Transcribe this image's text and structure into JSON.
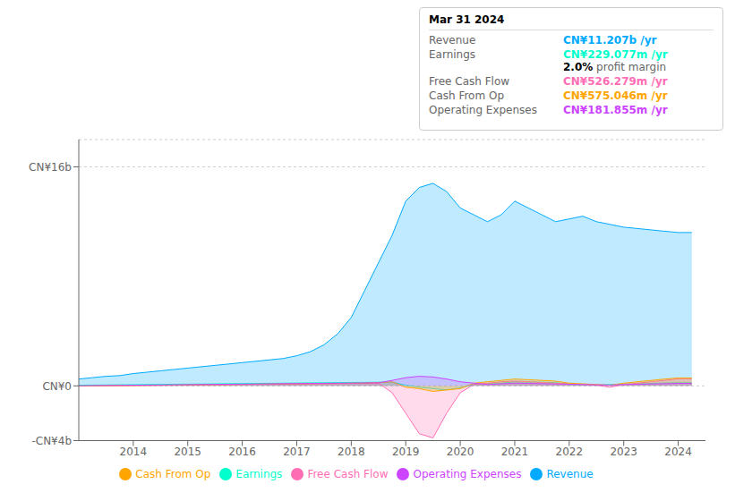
{
  "chart_data": {
    "type": "area",
    "x": [
      2013.0,
      2013.25,
      2013.5,
      2013.75,
      2014.0,
      2014.25,
      2014.5,
      2014.75,
      2015.0,
      2015.25,
      2015.5,
      2015.75,
      2016.0,
      2016.25,
      2016.5,
      2016.75,
      2017.0,
      2017.25,
      2017.5,
      2017.75,
      2018.0,
      2018.25,
      2018.5,
      2018.75,
      2019.0,
      2019.25,
      2019.5,
      2019.75,
      2020.0,
      2020.25,
      2020.5,
      2020.75,
      2021.0,
      2021.25,
      2021.5,
      2021.75,
      2022.0,
      2022.25,
      2022.5,
      2022.75,
      2023.0,
      2023.25,
      2023.5,
      2023.75,
      2024.0,
      2024.25
    ],
    "series": [
      {
        "name": "Revenue",
        "color": "#00aaff",
        "values": [
          500000000,
          600000000,
          700000000,
          750000000,
          900000000,
          1000000000,
          1100000000,
          1200000000,
          1300000000,
          1400000000,
          1500000000,
          1600000000,
          1700000000,
          1800000000,
          1900000000,
          2000000000,
          2200000000,
          2500000000,
          3000000000,
          3800000000,
          5000000000,
          7000000000,
          9000000000,
          11000000000,
          13500000000,
          14500000000,
          14800000000,
          14200000000,
          13000000000,
          12500000000,
          12000000000,
          12500000000,
          13500000000,
          13000000000,
          12500000000,
          12000000000,
          12200000000,
          12400000000,
          12000000000,
          11800000000,
          11600000000,
          11500000000,
          11400000000,
          11300000000,
          11207000000,
          11207000000
        ]
      },
      {
        "name": "Earnings",
        "color": "#00ffcc",
        "values": [
          50000000,
          60000000,
          70000000,
          80000000,
          90000000,
          100000000,
          110000000,
          120000000,
          130000000,
          140000000,
          150000000,
          160000000,
          170000000,
          180000000,
          190000000,
          200000000,
          210000000,
          220000000,
          230000000,
          240000000,
          250000000,
          260000000,
          270000000,
          280000000,
          50000000,
          -100000000,
          -200000000,
          -300000000,
          -150000000,
          100000000,
          150000000,
          200000000,
          300000000,
          280000000,
          260000000,
          240000000,
          100000000,
          80000000,
          60000000,
          100000000,
          120000000,
          150000000,
          180000000,
          210000000,
          229000000,
          229000000
        ]
      },
      {
        "name": "Free Cash Flow",
        "color": "#ff6eb4",
        "values": [
          -20000000,
          -10000000,
          0,
          10000000,
          20000000,
          30000000,
          40000000,
          50000000,
          60000000,
          70000000,
          80000000,
          90000000,
          100000000,
          110000000,
          120000000,
          130000000,
          140000000,
          150000000,
          160000000,
          170000000,
          180000000,
          190000000,
          200000000,
          -500000000,
          -2000000000,
          -3500000000,
          -3800000000,
          -2000000000,
          -500000000,
          100000000,
          200000000,
          300000000,
          350000000,
          300000000,
          250000000,
          200000000,
          150000000,
          100000000,
          50000000,
          -100000000,
          100000000,
          200000000,
          300000000,
          400000000,
          526000000,
          526000000
        ]
      },
      {
        "name": "Cash From Op",
        "color": "#ffa500",
        "values": [
          -10000000,
          0,
          10000000,
          20000000,
          30000000,
          40000000,
          50000000,
          60000000,
          70000000,
          80000000,
          90000000,
          100000000,
          110000000,
          120000000,
          130000000,
          140000000,
          150000000,
          160000000,
          170000000,
          180000000,
          190000000,
          200000000,
          250000000,
          300000000,
          -100000000,
          -200000000,
          -400000000,
          -300000000,
          -200000000,
          200000000,
          300000000,
          400000000,
          500000000,
          450000000,
          400000000,
          350000000,
          200000000,
          150000000,
          100000000,
          50000000,
          200000000,
          300000000,
          400000000,
          500000000,
          575000000,
          575000000
        ]
      },
      {
        "name": "Operating Expenses",
        "color": "#cc44ff",
        "values": [
          10000000,
          20000000,
          30000000,
          40000000,
          50000000,
          60000000,
          70000000,
          80000000,
          90000000,
          100000000,
          110000000,
          120000000,
          130000000,
          140000000,
          150000000,
          160000000,
          170000000,
          180000000,
          190000000,
          200000000,
          210000000,
          220000000,
          230000000,
          400000000,
          600000000,
          700000000,
          650000000,
          500000000,
          300000000,
          200000000,
          100000000,
          150000000,
          200000000,
          180000000,
          160000000,
          140000000,
          120000000,
          100000000,
          80000000,
          60000000,
          100000000,
          120000000,
          140000000,
          160000000,
          182000000,
          182000000
        ]
      }
    ],
    "xlim": [
      2013.0,
      2024.5
    ],
    "xticks": [
      2014,
      2015,
      2016,
      2017,
      2018,
      2019,
      2020,
      2021,
      2022,
      2023,
      2024
    ],
    "ylim": [
      -4000000000,
      18000000000
    ],
    "yticks": [
      {
        "value": -4000000000,
        "label": "-CN¥4b"
      },
      {
        "value": 0,
        "label": "CN¥0"
      },
      {
        "value": 16000000000,
        "label": "CN¥16b"
      }
    ],
    "grid": true,
    "legend": "bottom",
    "annotations": [
      {
        "text": "Mar 31 2024"
      },
      {
        "label": "Revenue",
        "text": "CN¥11.207b /yr",
        "color": "#00aaff"
      },
      {
        "label": "Earnings",
        "text": "CN¥229.077m /yr",
        "color": "#00ffcc",
        "subtext": [
          "2.0%",
          " profit margin"
        ]
      },
      {
        "label": "Free Cash Flow",
        "text": "CN¥526.279m /yr",
        "color": "#ff6eb4"
      },
      {
        "label": "Cash From Op",
        "text": "CN¥575.046m /yr",
        "color": "#ffa500"
      },
      {
        "label": "Operating Expenses",
        "text": "CN¥181.855m /yr",
        "color": "#cc44ff"
      }
    ]
  }
}
